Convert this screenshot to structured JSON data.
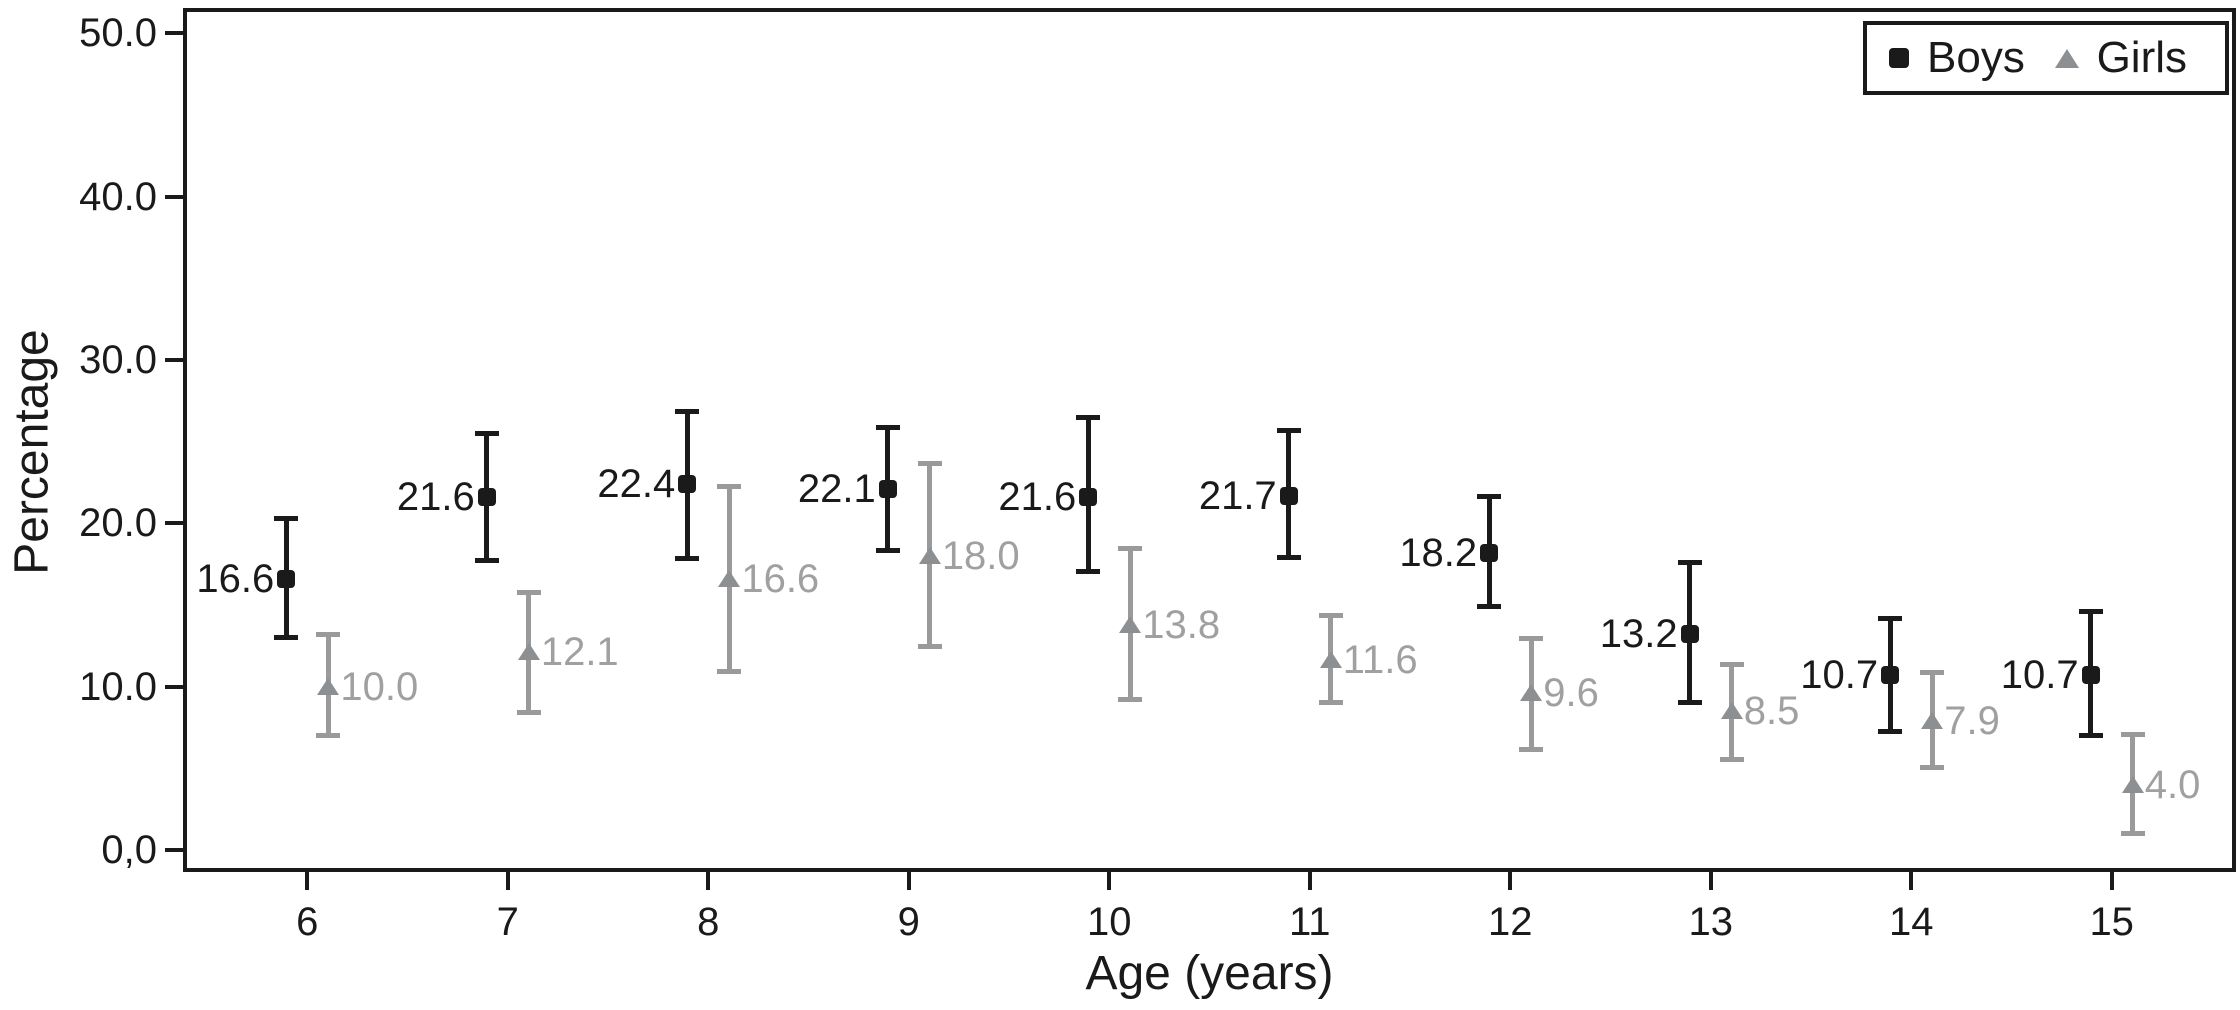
{
  "chart_data": {
    "type": "scatter",
    "title": "",
    "xlabel": "Age (years)",
    "ylabel": "Percentage",
    "grid": false,
    "legend_position": "top-right",
    "background_color": "#ffffff",
    "axis_color": "#1a1a1a",
    "xlim": [
      5.38,
      15.62
    ],
    "ylim": [
      -1.35,
      51.55
    ],
    "x_ticks": [
      {
        "v": 6,
        "label": "6"
      },
      {
        "v": 7,
        "label": "7"
      },
      {
        "v": 8,
        "label": "8"
      },
      {
        "v": 9,
        "label": "9"
      },
      {
        "v": 10,
        "label": "10"
      },
      {
        "v": 11,
        "label": "11"
      },
      {
        "v": 12,
        "label": "12"
      },
      {
        "v": 13,
        "label": "13"
      },
      {
        "v": 14,
        "label": "14"
      },
      {
        "v": 15,
        "label": "15"
      }
    ],
    "y_ticks": [
      {
        "v": 0,
        "label": "0,0"
      },
      {
        "v": 10,
        "label": "10.0"
      },
      {
        "v": 20,
        "label": "20.0"
      },
      {
        "v": 30,
        "label": "30.0"
      },
      {
        "v": 40,
        "label": "40.0"
      },
      {
        "v": 50,
        "label": "50.0"
      }
    ],
    "series": [
      {
        "name": "Boys",
        "marker": "square",
        "marker_color": "#1a1a1a",
        "error_color": "#1a1a1a",
        "label_color": "#1a1a1a",
        "label_side": "left",
        "x_offset": -0.105,
        "points": [
          {
            "x": 6,
            "y": 16.6,
            "lo": 13.0,
            "hi": 20.3,
            "label": "16.6"
          },
          {
            "x": 7,
            "y": 21.6,
            "lo": 17.7,
            "hi": 25.5,
            "label": "21.6"
          },
          {
            "x": 8,
            "y": 22.4,
            "lo": 17.8,
            "hi": 26.9,
            "label": "22.4"
          },
          {
            "x": 9,
            "y": 22.1,
            "lo": 18.3,
            "hi": 25.9,
            "label": "22.1"
          },
          {
            "x": 10,
            "y": 21.6,
            "lo": 17.0,
            "hi": 26.5,
            "label": "21.6"
          },
          {
            "x": 11,
            "y": 21.7,
            "lo": 17.9,
            "hi": 25.7,
            "label": "21.7"
          },
          {
            "x": 12,
            "y": 18.2,
            "lo": 14.9,
            "hi": 21.7,
            "label": "18.2"
          },
          {
            "x": 13,
            "y": 13.2,
            "lo": 9.0,
            "hi": 17.6,
            "label": "13.2"
          },
          {
            "x": 14,
            "y": 10.7,
            "lo": 7.2,
            "hi": 14.2,
            "label": "10.7"
          },
          {
            "x": 15,
            "y": 10.7,
            "lo": 7.0,
            "hi": 14.6,
            "label": "10.7"
          }
        ]
      },
      {
        "name": "Girls",
        "marker": "triangle",
        "marker_color": "#8d9092",
        "error_color": "#9a9a9a",
        "label_color": "#a0a0a0",
        "label_side": "right",
        "x_offset": 0.105,
        "points": [
          {
            "x": 6,
            "y": 10.0,
            "lo": 7.0,
            "hi": 13.2,
            "label": "10.0"
          },
          {
            "x": 7,
            "y": 12.1,
            "lo": 8.4,
            "hi": 15.8,
            "label": "12.1"
          },
          {
            "x": 8,
            "y": 16.6,
            "lo": 10.9,
            "hi": 22.3,
            "label": "16.6"
          },
          {
            "x": 9,
            "y": 18.0,
            "lo": 12.4,
            "hi": 23.7,
            "label": "18.0"
          },
          {
            "x": 10,
            "y": 13.8,
            "lo": 9.2,
            "hi": 18.5,
            "label": "13.8"
          },
          {
            "x": 11,
            "y": 11.6,
            "lo": 9.0,
            "hi": 14.4,
            "label": "11.6"
          },
          {
            "x": 12,
            "y": 9.6,
            "lo": 6.1,
            "hi": 13.0,
            "label": "9.6"
          },
          {
            "x": 13,
            "y": 8.5,
            "lo": 5.5,
            "hi": 11.4,
            "label": "8.5"
          },
          {
            "x": 14,
            "y": 7.9,
            "lo": 5.0,
            "hi": 10.9,
            "label": "7.9"
          },
          {
            "x": 15,
            "y": 4.0,
            "lo": 1.0,
            "hi": 7.1,
            "label": "4.0"
          }
        ]
      }
    ]
  }
}
